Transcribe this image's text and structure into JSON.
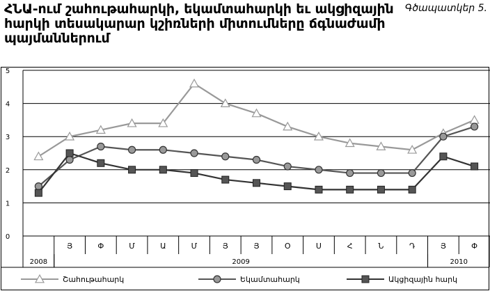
{
  "title": "ՀՆԱ-ում շահութահարկի, եկամտահարկի եւ ակցիզային հարկի տեսակարար կշիռների միտումները ճգնաժամի պայմաններում",
  "figure_label": "Գծապատկեր 5.",
  "chart_data": {
    "type": "line",
    "title": "ՀՆԱ-ում շահութահարկի, եկամտահարկի եւ ակցիզային հարկի տեսակարար կշիռների միտումները ճգնաժամի պայմաններում",
    "x": [
      "",
      "Յ",
      "Փ",
      "Մ",
      "Ա",
      "Մ",
      "Յ",
      "Յ",
      "Օ",
      "Ս",
      "Հ",
      "Ն",
      "Դ",
      "Յ",
      "Փ"
    ],
    "year_groups": [
      {
        "label": "2008",
        "start": 0,
        "end": 0
      },
      {
        "label": "2009",
        "start": 1,
        "end": 12
      },
      {
        "label": "2010",
        "start": 13,
        "end": 14
      }
    ],
    "ylim": [
      0,
      5
    ],
    "yticks": [
      "0",
      "1",
      "2",
      "3",
      "4",
      "5"
    ],
    "grid": true,
    "legend_position": "bottom",
    "series": [
      {
        "name": "Շահութահարկ",
        "marker": "triangle",
        "color": "#999999",
        "values": [
          2.4,
          3.0,
          3.2,
          3.4,
          3.4,
          4.6,
          4.0,
          3.7,
          3.3,
          3.0,
          2.8,
          2.7,
          2.6,
          3.1,
          3.5
        ]
      },
      {
        "name": "Եկամտահարկ",
        "marker": "circle",
        "color": "#555555",
        "values": [
          1.5,
          2.3,
          2.7,
          2.6,
          2.6,
          2.5,
          2.4,
          2.3,
          2.1,
          2.0,
          1.9,
          1.9,
          1.9,
          3.0,
          3.3
        ]
      },
      {
        "name": "Ակցիզային հարկ",
        "marker": "square",
        "color": "#333333",
        "values": [
          1.3,
          2.5,
          2.2,
          2.0,
          2.0,
          1.9,
          1.7,
          1.6,
          1.5,
          1.4,
          1.4,
          1.4,
          1.4,
          2.4,
          2.1
        ]
      }
    ]
  }
}
